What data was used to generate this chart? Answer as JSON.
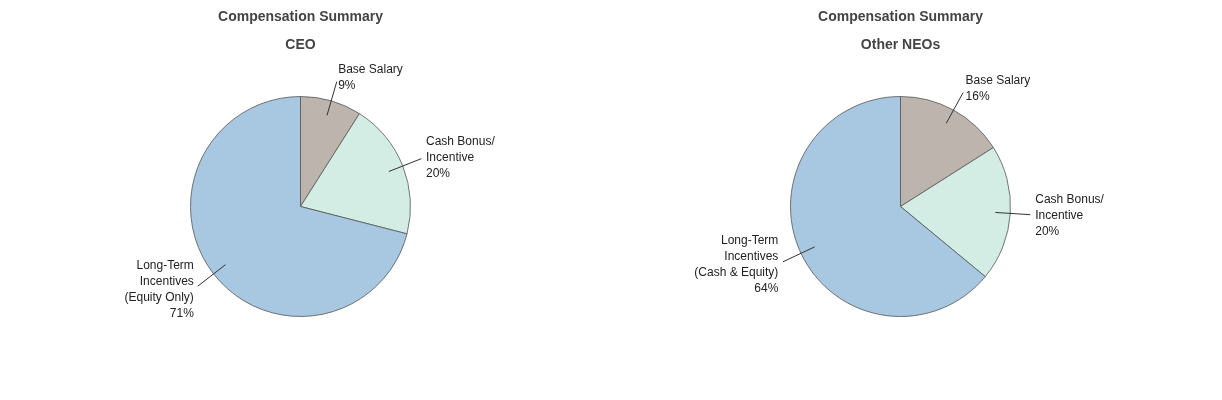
{
  "chart_data": [
    {
      "type": "pie",
      "title": "Compensation Summary",
      "subtitle": "CEO",
      "categories": [
        "Base Salary",
        "Cash Bonus/\nIncentive",
        "Long-Term\nIncentives\n(Equity Only)"
      ],
      "values": [
        9,
        20,
        71
      ],
      "value_labels": [
        "9%",
        "20%",
        "71%"
      ],
      "colors": [
        "#bdb4ae",
        "#d3ede5",
        "#a8c7e0"
      ]
    },
    {
      "type": "pie",
      "title": "Compensation Summary",
      "subtitle": "Other NEOs",
      "categories": [
        "Base Salary",
        "Cash Bonus/\nIncentive",
        "Long-Term\nIncentives\n(Cash & Equity)"
      ],
      "values": [
        16,
        20,
        64
      ],
      "value_labels": [
        "16%",
        "20%",
        "64%"
      ],
      "colors": [
        "#bdb4ae",
        "#d3ede5",
        "#a8c7e0"
      ]
    }
  ]
}
